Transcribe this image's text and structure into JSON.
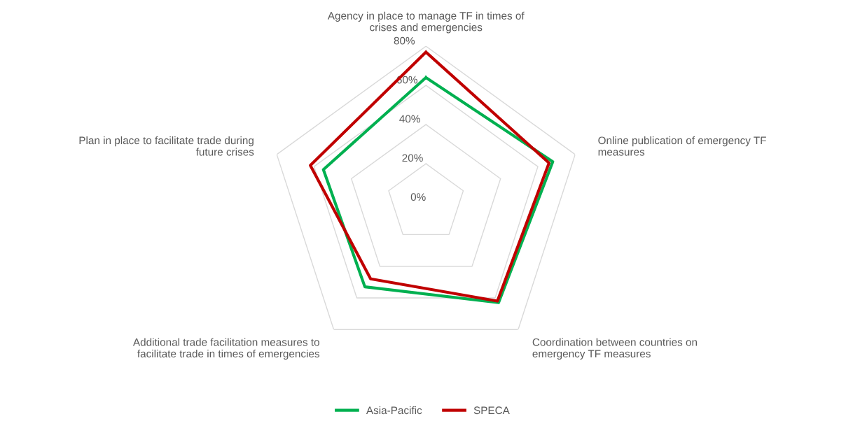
{
  "chart_data": {
    "type": "radar",
    "categories": [
      "Agency in place to manage TF in times of\ncrises and emergencies",
      "Online publication of emergency TF\nmeasures",
      "Coordination between countries on\nemergency TF measures",
      "Additional trade facilitation measures to\nfacilitate trade in times of emergencies",
      "Plan in place to facilitate trade during\nfuture crises"
    ],
    "series": [
      {
        "name": "Asia-Pacific",
        "color": "#00b050",
        "values": [
          64,
          68,
          63,
          53,
          55
        ]
      },
      {
        "name": "SPECA",
        "color": "#c00000",
        "values": [
          77,
          66,
          62,
          48,
          62
        ]
      }
    ],
    "ylim": [
      0,
      80
    ],
    "yticks": [
      {
        "value": 0,
        "label": "0%"
      },
      {
        "value": 20,
        "label": "20%"
      },
      {
        "value": 40,
        "label": "40%"
      },
      {
        "value": 60,
        "label": "60%"
      },
      {
        "value": 80,
        "label": "80%"
      }
    ],
    "grid": true,
    "legend": "bottom",
    "marker": "none",
    "line_style": "solid"
  }
}
